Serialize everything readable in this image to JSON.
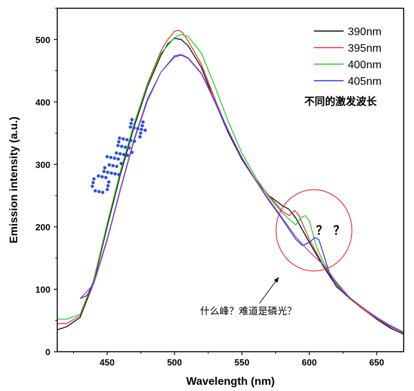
{
  "chart_data": {
    "type": "line",
    "xlabel": "Wavelength (nm)",
    "ylabel": "Emission intensity (a.u.)",
    "xlim": [
      413,
      670
    ],
    "ylim": [
      0,
      550
    ],
    "x_ticks": [
      450,
      500,
      550,
      600,
      650
    ],
    "y_ticks": [
      0,
      100,
      200,
      300,
      400,
      500
    ],
    "grid": false,
    "legend_position": "top-right",
    "legend_caption": "不同的激发波长",
    "series": [
      {
        "name": "390nm",
        "color": "#000000",
        "points": [
          [
            413,
            35
          ],
          [
            420,
            40
          ],
          [
            430,
            55
          ],
          [
            440,
            110
          ],
          [
            450,
            200
          ],
          [
            460,
            285
          ],
          [
            470,
            360
          ],
          [
            480,
            425
          ],
          [
            490,
            475
          ],
          [
            495,
            493
          ],
          [
            500,
            502
          ],
          [
            505,
            500
          ],
          [
            510,
            490
          ],
          [
            520,
            455
          ],
          [
            530,
            400
          ],
          [
            540,
            350
          ],
          [
            550,
            308
          ],
          [
            560,
            275
          ],
          [
            570,
            250
          ],
          [
            580,
            234
          ],
          [
            585,
            228
          ],
          [
            590,
            214
          ],
          [
            600,
            175
          ],
          [
            610,
            138
          ],
          [
            620,
            105
          ],
          [
            630,
            85
          ],
          [
            640,
            68
          ],
          [
            650,
            52
          ],
          [
            660,
            38
          ],
          [
            670,
            28
          ]
        ]
      },
      {
        "name": "395nm",
        "color": "#e0302b",
        "points": [
          [
            413,
            45
          ],
          [
            420,
            45
          ],
          [
            430,
            58
          ],
          [
            440,
            112
          ],
          [
            450,
            205
          ],
          [
            460,
            290
          ],
          [
            470,
            365
          ],
          [
            480,
            430
          ],
          [
            490,
            482
          ],
          [
            495,
            500
          ],
          [
            500,
            513
          ],
          [
            503,
            515
          ],
          [
            506,
            511
          ],
          [
            510,
            498
          ],
          [
            520,
            460
          ],
          [
            530,
            405
          ],
          [
            540,
            352
          ],
          [
            550,
            310
          ],
          [
            560,
            276
          ],
          [
            570,
            250
          ],
          [
            580,
            225
          ],
          [
            585,
            218
          ],
          [
            589,
            226
          ],
          [
            592,
            220
          ],
          [
            600,
            180
          ],
          [
            610,
            140
          ],
          [
            620,
            108
          ],
          [
            630,
            85
          ],
          [
            640,
            68
          ],
          [
            650,
            53
          ],
          [
            660,
            40
          ],
          [
            670,
            31
          ]
        ]
      },
      {
        "name": "400nm",
        "color": "#22cc22",
        "points": [
          [
            413,
            52
          ],
          [
            420,
            52
          ],
          [
            430,
            60
          ],
          [
            440,
            115
          ],
          [
            450,
            205
          ],
          [
            460,
            290
          ],
          [
            470,
            365
          ],
          [
            480,
            428
          ],
          [
            490,
            478
          ],
          [
            500,
            503
          ],
          [
            505,
            508
          ],
          [
            510,
            505
          ],
          [
            520,
            478
          ],
          [
            530,
            425
          ],
          [
            540,
            368
          ],
          [
            550,
            318
          ],
          [
            560,
            280
          ],
          [
            570,
            248
          ],
          [
            580,
            222
          ],
          [
            590,
            203
          ],
          [
            594,
            215
          ],
          [
            597,
            218
          ],
          [
            600,
            210
          ],
          [
            605,
            170
          ],
          [
            610,
            145
          ],
          [
            620,
            110
          ],
          [
            630,
            87
          ],
          [
            640,
            70
          ],
          [
            650,
            54
          ],
          [
            660,
            41
          ],
          [
            670,
            30
          ]
        ]
      },
      {
        "name": "405nm",
        "color": "#2233dd",
        "points": [
          [
            430,
            85
          ],
          [
            435,
            90
          ],
          [
            440,
            110
          ],
          [
            450,
            180
          ],
          [
            460,
            262
          ],
          [
            470,
            340
          ],
          [
            480,
            405
          ],
          [
            490,
            448
          ],
          [
            500,
            472
          ],
          [
            505,
            475
          ],
          [
            510,
            470
          ],
          [
            520,
            445
          ],
          [
            530,
            400
          ],
          [
            540,
            352
          ],
          [
            550,
            310
          ],
          [
            560,
            275
          ],
          [
            570,
            242
          ],
          [
            580,
            212
          ],
          [
            590,
            180
          ],
          [
            595,
            170
          ],
          [
            600,
            175
          ],
          [
            604,
            183
          ],
          [
            607,
            180
          ],
          [
            610,
            160
          ],
          [
            615,
            125
          ],
          [
            620,
            104
          ],
          [
            630,
            86
          ],
          [
            640,
            70
          ],
          [
            650,
            55
          ],
          [
            660,
            42
          ],
          [
            670,
            31
          ]
        ]
      },
      {
        "name": "",
        "color": "#a040c0",
        "points": [
          [
            430,
            85
          ],
          [
            440,
            108
          ],
          [
            450,
            178
          ],
          [
            460,
            260
          ],
          [
            470,
            338
          ],
          [
            480,
            402
          ],
          [
            490,
            448
          ],
          [
            500,
            474
          ],
          [
            505,
            476
          ],
          [
            510,
            471
          ],
          [
            520,
            446
          ],
          [
            530,
            402
          ],
          [
            540,
            354
          ],
          [
            550,
            311
          ],
          [
            560,
            276
          ],
          [
            570,
            244
          ],
          [
            580,
            214
          ],
          [
            590,
            184
          ],
          [
            600,
            160
          ],
          [
            610,
            140
          ],
          [
            620,
            112
          ],
          [
            630,
            86
          ],
          [
            640,
            70
          ],
          [
            650,
            54
          ],
          [
            660,
            41
          ],
          [
            670,
            30
          ]
        ]
      }
    ],
    "annotations": {
      "question_marks": "？？",
      "callout": "什么峰？难道是磷光？",
      "watermark_chars": [
        "4",
        "5",
        "2",
        "0"
      ]
    }
  }
}
